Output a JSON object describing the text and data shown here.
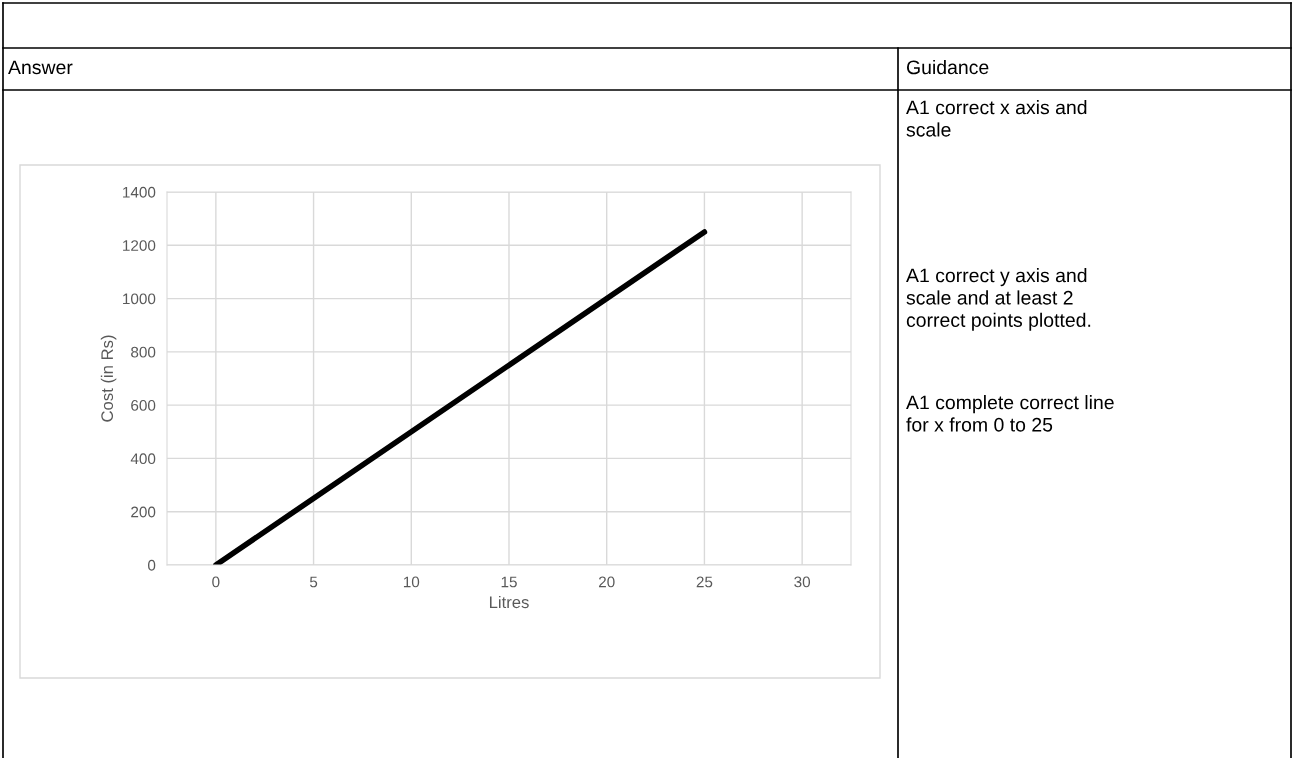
{
  "chart_data": {
    "type": "line",
    "xlabel": "Litres",
    "ylabel": "Cost (in Rs)",
    "x": [
      0,
      25
    ],
    "series": [
      {
        "color": "#000000",
        "values": [
          0,
          1250
        ]
      }
    ],
    "xlim": [
      -2.5,
      32.5
    ],
    "ylim": [
      0,
      1400
    ],
    "xticks": [
      0,
      5,
      10,
      15,
      20,
      25,
      30
    ],
    "yticks": [
      0,
      200,
      400,
      600,
      800,
      1000,
      1200,
      1400
    ],
    "grid": true,
    "marker": "none",
    "line_style": "solid",
    "annotations": [
      "Answer",
      "Guidance",
      "A1 correct x axis and\nscale",
      "A1 correct y axis and\nscale and at least 2\ncorrect points plotted.",
      "A1 complete correct line\nfor x from 0 to 25"
    ]
  }
}
